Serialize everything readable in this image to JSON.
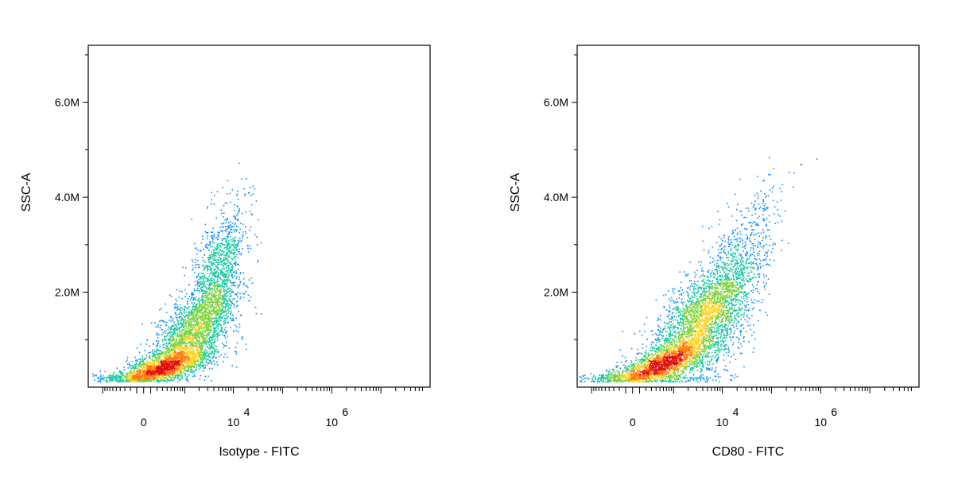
{
  "chart_data": [
    {
      "type": "scatter",
      "xlabel": "Isotype - FITC",
      "ylabel": "SSC-A",
      "x_scale": "biexponential",
      "x_ticks": [
        {
          "value": 0,
          "base": "0",
          "exp": ""
        },
        {
          "value": 10000,
          "base": "10",
          "exp": "4"
        },
        {
          "value": 1000000,
          "base": "10",
          "exp": "6"
        }
      ],
      "y_ticks": [
        {
          "value": 2000000,
          "label": "2.0M"
        },
        {
          "value": 4000000,
          "label": "4.0M"
        },
        {
          "value": 6000000,
          "label": "6.0M"
        }
      ],
      "ylim": [
        0,
        7200000
      ],
      "grid": false,
      "coloring": "pseudocolor density",
      "populations": [
        {
          "name": "",
          "x_center": 250,
          "y_center": 400000,
          "x_spread": 0.55,
          "y_spread": 150000,
          "count": 1800
        },
        {
          "name": "",
          "x_center": 1200,
          "y_center": 1100000,
          "x_spread": 0.45,
          "y_spread": 380000,
          "count": 1900
        },
        {
          "name": "",
          "x_center": 4500,
          "y_center": 2300000,
          "x_spread": 0.3,
          "y_spread": 650000,
          "count": 1400
        }
      ]
    },
    {
      "type": "scatter",
      "xlabel": "CD80 - FITC",
      "ylabel": "SSC-A",
      "x_scale": "biexponential",
      "x_ticks": [
        {
          "value": 0,
          "base": "0",
          "exp": ""
        },
        {
          "value": 10000,
          "base": "10",
          "exp": "4"
        },
        {
          "value": 1000000,
          "base": "10",
          "exp": "6"
        }
      ],
      "y_ticks": [
        {
          "value": 2000000,
          "label": "2.0M"
        },
        {
          "value": 4000000,
          "label": "4.0M"
        },
        {
          "value": 6000000,
          "label": "6.0M"
        }
      ],
      "ylim": [
        0,
        7200000
      ],
      "grid": false,
      "coloring": "pseudocolor density",
      "populations": [
        {
          "name": "",
          "x_center": 400,
          "y_center": 450000,
          "x_spread": 0.6,
          "y_spread": 180000,
          "count": 1800
        },
        {
          "name": "",
          "x_center": 2500,
          "y_center": 1300000,
          "x_spread": 0.55,
          "y_spread": 450000,
          "count": 2000
        },
        {
          "name": "",
          "x_center": 12000,
          "y_center": 1900000,
          "x_spread": 0.5,
          "y_spread": 700000,
          "count": 1500
        }
      ]
    }
  ]
}
